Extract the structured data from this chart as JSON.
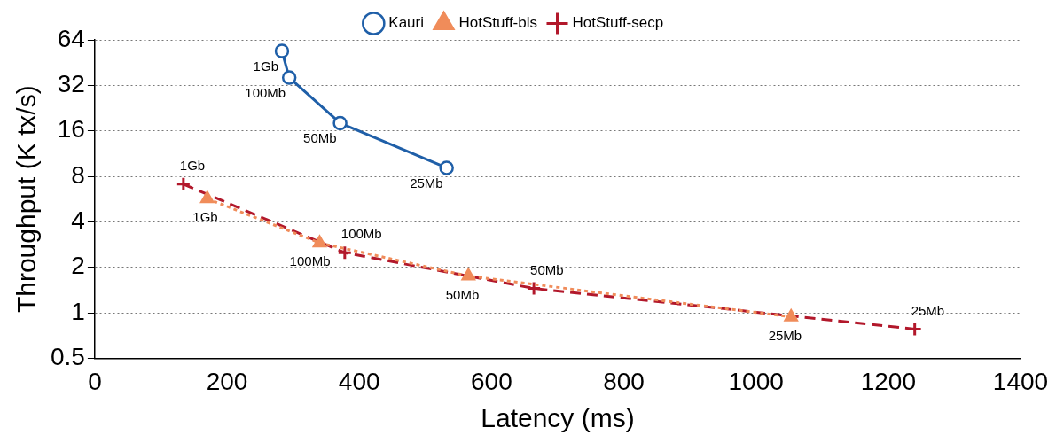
{
  "chart_data": {
    "type": "line",
    "xlabel": "Latency (ms)",
    "ylabel": "Throughput (K tx/s)",
    "log": "y",
    "grid": "y",
    "legend": "top",
    "xlim": [
      0,
      1400
    ],
    "xticks": [
      0,
      200,
      400,
      600,
      800,
      1000,
      1200,
      1400
    ],
    "ylim": [
      0.5,
      64
    ],
    "yticks": [
      0.5,
      1,
      2,
      4,
      8,
      16,
      32,
      64
    ],
    "series": [
      {
        "name": "Kauri",
        "color": "#1f5fa8",
        "marker": "circle",
        "line_style": "solid",
        "x": [
          283,
          294,
          371,
          532
        ],
        "values": [
          54,
          36,
          18,
          9.1
        ]
      },
      {
        "name": "HotStuff-bls",
        "color": "#f08c5a",
        "marker": "triangle",
        "line_style": "dotted",
        "x": [
          170,
          340,
          565,
          1053
        ],
        "values": [
          5.7,
          2.9,
          1.75,
          0.94
        ]
      },
      {
        "name": "HotStuff-secp",
        "color": "#b2182b",
        "marker": "cross",
        "line_style": "dashed",
        "x": [
          134,
          378,
          664,
          1240
        ],
        "values": [
          7.1,
          2.5,
          1.45,
          0.78
        ]
      }
    ],
    "annotations": [
      {
        "text": "1Gb",
        "x": 283,
        "y": 54
      },
      {
        "text": "100Mb",
        "x": 294,
        "y": 36
      },
      {
        "text": "50Mb",
        "x": 371,
        "y": 18
      },
      {
        "text": "25Mb",
        "x": 532,
        "y": 9.1
      },
      {
        "text": "1Gb",
        "x": 170,
        "y": 5.7
      },
      {
        "text": "100Mb",
        "x": 340,
        "y": 2.9
      },
      {
        "text": "50Mb",
        "x": 565,
        "y": 1.75
      },
      {
        "text": "25Mb",
        "x": 1053,
        "y": 0.94
      },
      {
        "text": "1Gb",
        "x": 134,
        "y": 7.1
      },
      {
        "text": "100Mb",
        "x": 378,
        "y": 2.5
      },
      {
        "text": "50Mb",
        "x": 664,
        "y": 1.45
      },
      {
        "text": "25Mb",
        "x": 1240,
        "y": 0.78
      }
    ]
  }
}
